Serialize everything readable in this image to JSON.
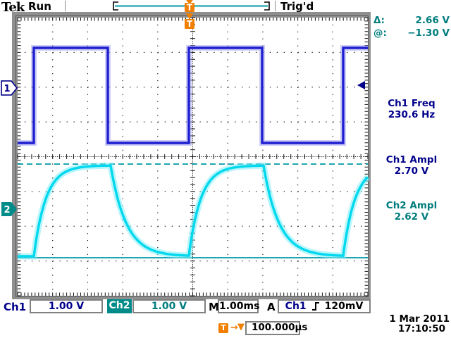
{
  "header": {
    "logo": "Tek",
    "acquisition_state": "Run",
    "trigger_status": "Trig'd"
  },
  "cursors_readout": {
    "delta_label": "Δ:",
    "delta_value": "2.66 V",
    "at_label": "@:",
    "at_value": "−1.30 V"
  },
  "measurements": [
    {
      "label": "Ch1 Freq",
      "value": "230.6 Hz",
      "channel": "ch1"
    },
    {
      "label": "Ch1 Ampl",
      "value": "2.70 V",
      "channel": "ch1"
    },
    {
      "label": "Ch2 Ampl",
      "value": "2.62 V",
      "channel": "ch2"
    }
  ],
  "status_bar": {
    "ch1_label": "Ch1",
    "ch1_scale": "1.00 V",
    "ch2_label": "Ch2",
    "ch2_scale": "1.00 V",
    "horizontal_label": "M",
    "horizontal_scale": "1.00ms",
    "trigger_label": "A",
    "trigger_source": "Ch1",
    "trigger_level": "120mV"
  },
  "footer": {
    "trigger_delay": "100.000µs",
    "date": "1 Mar 2011",
    "time": "17:10:50"
  },
  "markers": {
    "trigger": "T",
    "ch1": "1",
    "ch2": "2"
  },
  "icons": {
    "delay_arrow": "→",
    "delay_pointer": "▼"
  },
  "colors": {
    "ch1_text": "#00008b",
    "ch2_text": "#007d7d",
    "ch1_trace": "#1f1fd0",
    "ch2_trace": "#00d8ee",
    "cursor_line": "#009aa6",
    "trigger_orange": "#f07f00"
  },
  "chart_data": {
    "type": "line",
    "instrument": "oscilloscope",
    "title": "",
    "x_axis": {
      "scale_per_div": "1.00 ms",
      "divisions": 10
    },
    "y_axis": {
      "divisions": 8,
      "ch1_scale_per_div": "1.00 V",
      "ch2_scale_per_div": "1.00 V"
    },
    "measured": {
      "ch1_freq_hz": 230.6,
      "ch1_ampl_v": 2.7,
      "ch2_ampl_v": 2.62,
      "cursor_delta_v": 2.66,
      "cursor_at_v": -1.3
    },
    "series": [
      {
        "name": "Ch1",
        "kind": "square",
        "initial": "low",
        "high_div": 0.871,
        "low_div": 3.605,
        "ground_div": 2.025,
        "edges_div": [
          0.463,
          2.575,
          4.889,
          6.982,
          9.296
        ]
      },
      {
        "name": "Ch2",
        "kind": "rc-charge-discharge",
        "base_div": 6.865,
        "peak_div": 4.253,
        "ground_div": 5.509,
        "rise_tau_div": 0.342,
        "fall_tau_div": 0.443,
        "rise_starts_div": [
          0.463,
          4.889,
          9.296
        ],
        "fall_starts_div": [
          2.656,
          7.022
        ]
      }
    ],
    "cursors": {
      "type": "voltage",
      "line1_div": 4.213,
      "line2_div": 6.906
    },
    "trigger": {
      "source": "Ch1",
      "slope": "rising",
      "level": "120mV",
      "level_div": 1.944,
      "position_div": 4.909,
      "delay": "100.000µs"
    }
  }
}
